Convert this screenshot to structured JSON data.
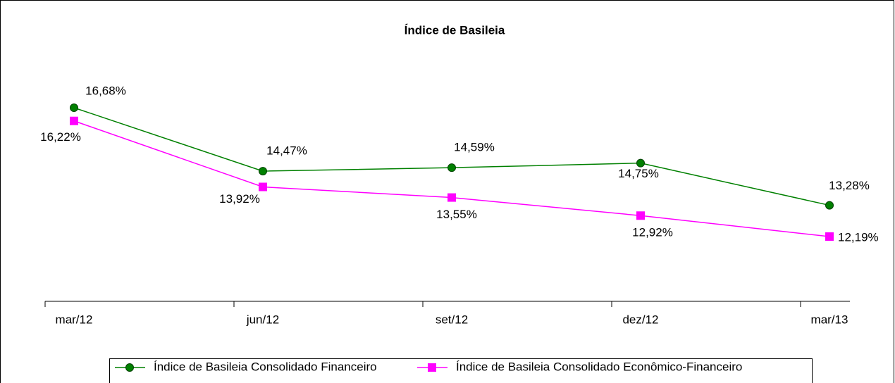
{
  "chart_data": {
    "type": "line",
    "title": "Índice de Basileia",
    "categories": [
      "mar/12",
      "jun/12",
      "set/12",
      "dez/12",
      "mar/13"
    ],
    "series": [
      {
        "name": "Índice de Basileia Consolidado Financeiro",
        "color": "#008000",
        "marker": "circle",
        "values": [
          16.68,
          14.47,
          14.59,
          14.75,
          13.28
        ],
        "value_labels": [
          "16,68%",
          "14,47%",
          "14,59%",
          "14,75%",
          "13,28%"
        ]
      },
      {
        "name": "Índice de Basileia Consolidado Econômico-Financeiro",
        "color": "#ff00ff",
        "marker": "square",
        "values": [
          16.22,
          13.92,
          13.55,
          12.92,
          12.19
        ],
        "value_labels": [
          "16,22%",
          "13,92%",
          "13,55%",
          "12,92%",
          "12,19%"
        ]
      }
    ]
  }
}
